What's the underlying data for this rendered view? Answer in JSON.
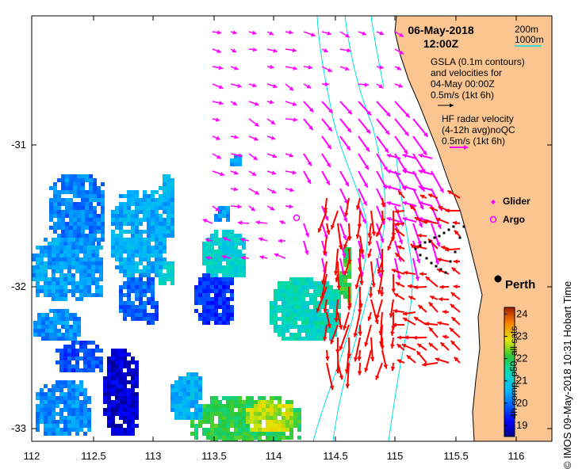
{
  "map": {
    "date": "06-May-2018",
    "time": "12:00Z",
    "depth_legend": [
      "200m",
      "1000m"
    ],
    "gsla_note": [
      "GSLA (0.1m contours)",
      "and velocities for",
      "04-May 00:00Z",
      "0.5m/s (1kt 6h)"
    ],
    "hf_note": [
      "HF radar velocity",
      "(4-12h avg)noQC",
      "0.5m/s (1kt 6h)"
    ],
    "legend": {
      "glider": "Glider",
      "argo": "Argo"
    },
    "city": "Perth",
    "x_ticks": [
      "112",
      "112.5",
      "113",
      "113.5",
      "114",
      "114.5",
      "115",
      "115.5",
      "116"
    ],
    "y_ticks": [
      "-31",
      "-32",
      "-33"
    ],
    "colorbar": {
      "label": "4h comp, p50, all sats",
      "ticks": [
        "24",
        "23",
        "22",
        "21",
        "20",
        "19"
      ],
      "range": [
        18.5,
        24.3
      ]
    },
    "footer": "© IMOS 09-May-2018 10:31 Hobart Time",
    "colors": {
      "land": "#fac590",
      "gsla_arrows": "#ff00ff",
      "hf_arrows": "#ff0000",
      "isobaths": "#00e0e0"
    }
  }
}
